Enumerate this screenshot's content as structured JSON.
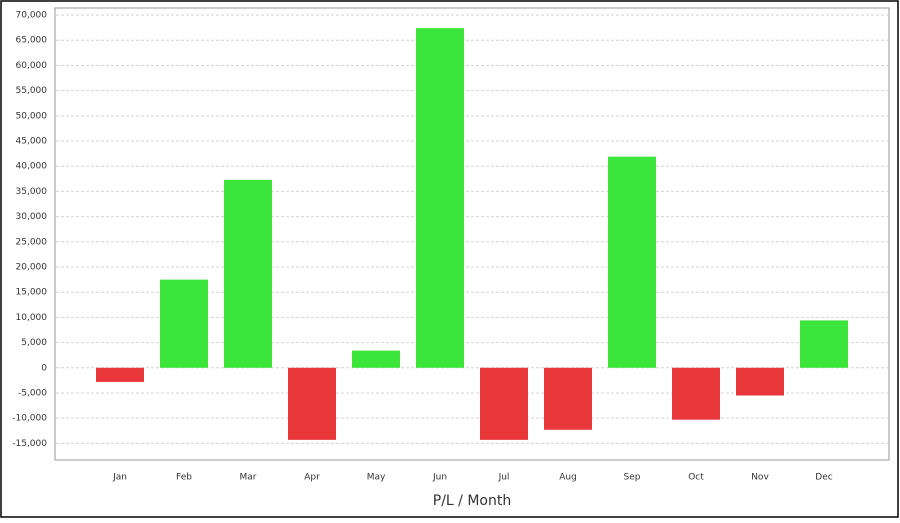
{
  "chart_data": {
    "type": "bar",
    "x_label": "P/L / Month",
    "categories": [
      "Jan",
      "Feb",
      "Mar",
      "Apr",
      "May",
      "Jun",
      "Jul",
      "Aug",
      "Sep",
      "Oct",
      "Nov",
      "Dec"
    ],
    "values": [
      -2800,
      17500,
      37300,
      -14300,
      3400,
      67400,
      -14300,
      -12300,
      41900,
      -10300,
      -5500,
      9400
    ],
    "positive_color": "#3be53b",
    "negative_color": "#e8363a",
    "ylim": [
      -18300,
      71400
    ],
    "yticks": [
      {
        "value": -15000,
        "label": "-15,000"
      },
      {
        "value": -10000,
        "label": "-10,000"
      },
      {
        "value": -5000,
        "label": "-5,000"
      },
      0,
      {
        "value": 5000,
        "label": "5,000"
      },
      {
        "value": 10000,
        "label": "10,000"
      },
      {
        "value": 15000,
        "label": "15,000"
      },
      {
        "value": 20000,
        "label": "20,000"
      },
      {
        "value": 25000,
        "label": "25,000"
      },
      {
        "value": 30000,
        "label": "30,000"
      },
      {
        "value": 35000,
        "label": "35,000"
      },
      {
        "value": 40000,
        "label": "40,000"
      },
      {
        "value": 45000,
        "label": "45,000"
      },
      {
        "value": 50000,
        "label": "50,000"
      },
      {
        "value": 55000,
        "label": "55,000"
      },
      {
        "value": 60000,
        "label": "60,000"
      },
      {
        "value": 65000,
        "label": "65,000"
      },
      {
        "value": 70000,
        "label": "70,000"
      }
    ],
    "grid": true
  }
}
